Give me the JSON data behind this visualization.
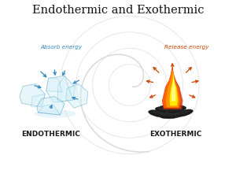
{
  "title": "Endothermic and Exothermic",
  "title_fontsize": 10.5,
  "title_font": "serif",
  "bg_color": "#ffffff",
  "endothermic_label": "ENDOTHERMIC",
  "exothermic_label": "EXOTHERMIC",
  "absorb_text": "Absorb energy",
  "release_text": "Release energy",
  "absorb_color": "#3388bb",
  "release_color": "#cc4400",
  "label_fontsize": 6.5,
  "annotation_fontsize": 5.2,
  "ice_face": "#d0eef8",
  "ice_edge": "#4499bb",
  "ice_alpha": 0.55,
  "coal_dark": "#1a1a1a",
  "coal_mid": "#2d2d2d",
  "flame_outer_color": "#ff6600",
  "flame_mid_color": "#ff9900",
  "flame_inner_color": "#ffee00",
  "flame_tip_color": "#ffff88"
}
